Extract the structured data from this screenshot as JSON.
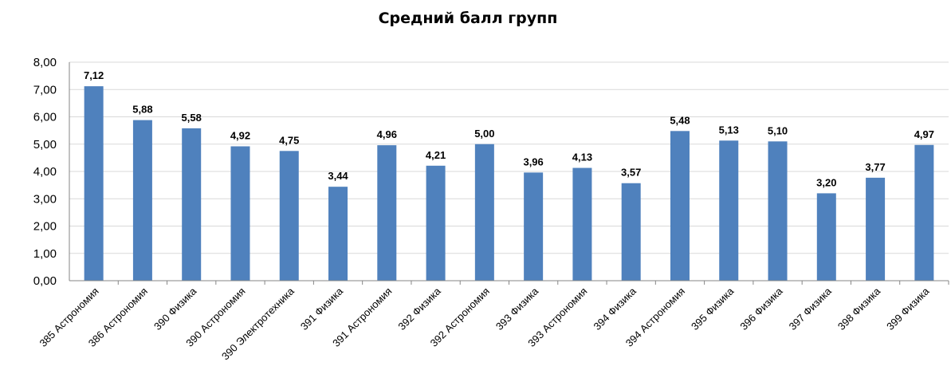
{
  "chart_data": {
    "type": "bar",
    "title": "Средний балл групп",
    "xlabel": "",
    "ylabel": "",
    "ylim": [
      0,
      8
    ],
    "yticks": [
      "0,00",
      "1,00",
      "2,00",
      "3,00",
      "4,00",
      "5,00",
      "6,00",
      "7,00",
      "8,00"
    ],
    "grid": true,
    "legend": "none",
    "bar_color": "#4f81bd",
    "categories": [
      "385 Астрономия",
      "386 Астрономия",
      "390 Физика",
      "390 Астрономия",
      "390 Электротехника",
      "391 Физика",
      "391 Астрономия",
      "392 Физика",
      "392 Астрономия",
      "393 Физика",
      "393 Астрономия",
      "394 Физика",
      "394 Астрономия",
      "395 Физика",
      "396 Физика",
      "397 Физика",
      "398 Физика",
      "399 Физика"
    ],
    "values": [
      7.12,
      5.88,
      5.58,
      4.92,
      4.75,
      3.44,
      4.96,
      4.21,
      5.0,
      3.96,
      4.13,
      3.57,
      5.48,
      5.13,
      5.1,
      3.2,
      3.77,
      4.97
    ],
    "data_labels": [
      "7,12",
      "5,88",
      "5,58",
      "4,92",
      "4,75",
      "3,44",
      "4,96",
      "4,21",
      "5,00",
      "3,96",
      "4,13",
      "3,57",
      "5,48",
      "5,13",
      "5,10",
      "3,20",
      "3,77",
      "4,97"
    ]
  }
}
